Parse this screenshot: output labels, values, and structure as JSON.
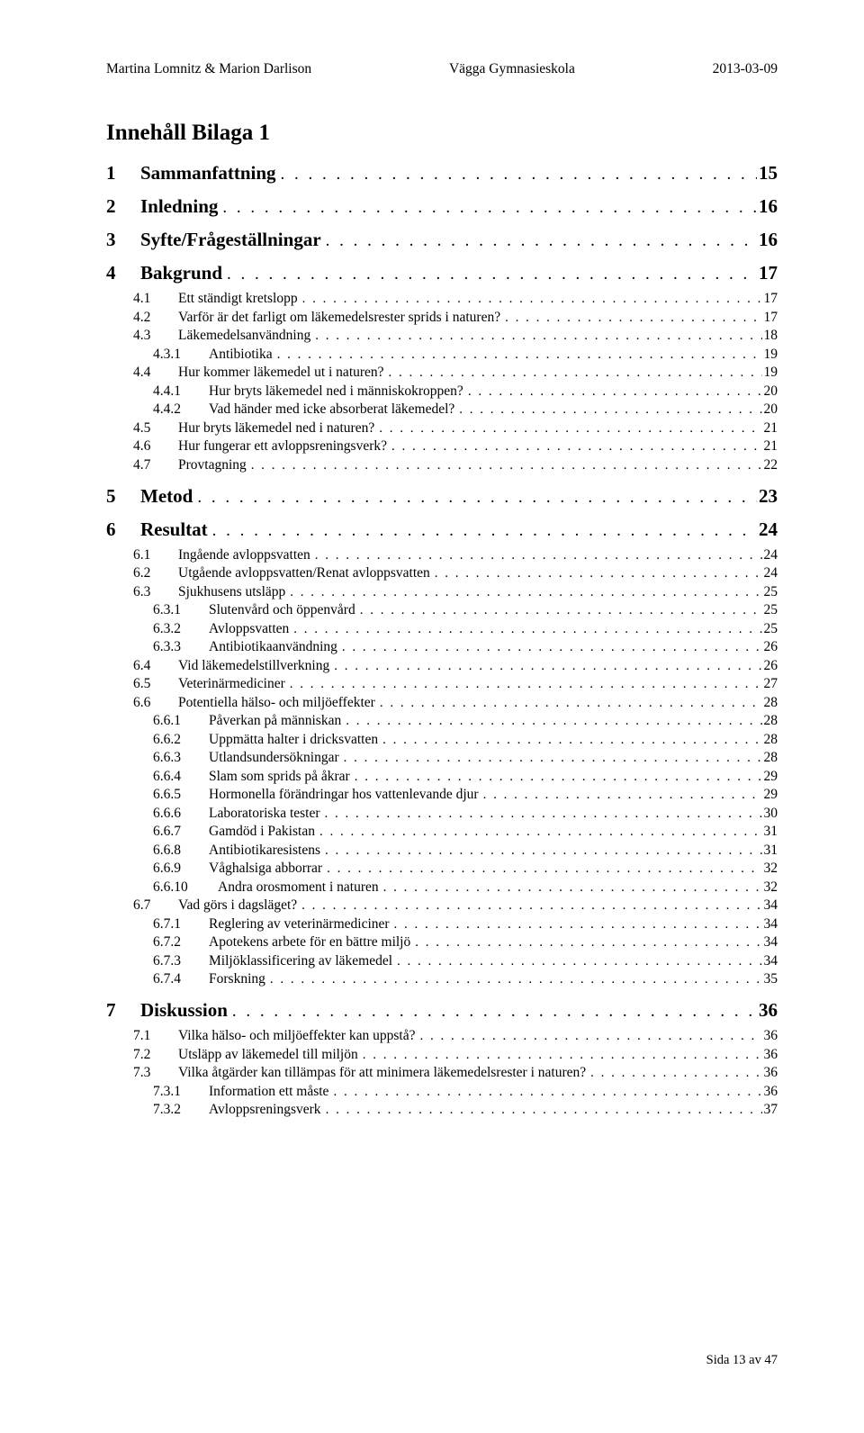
{
  "header": {
    "left": "Martina Lomnitz & Marion Darlison",
    "center": "Vägga Gymnasieskola",
    "right": "2013-03-09"
  },
  "title": "Innehåll Bilaga 1",
  "toc": [
    {
      "lvl": 1,
      "num": "1",
      "title": "Sammanfattning",
      "page": "15"
    },
    {
      "lvl": 1,
      "num": "2",
      "title": "Inledning",
      "page": "16"
    },
    {
      "lvl": 1,
      "num": "3",
      "title": "Syfte/Frågeställningar",
      "page": "16"
    },
    {
      "lvl": 1,
      "num": "4",
      "title": "Bakgrund",
      "page": "17"
    },
    {
      "lvl": 2,
      "num": "4.1",
      "title": "Ett ständigt kretslopp",
      "page": "17"
    },
    {
      "lvl": 2,
      "num": "4.2",
      "title": "Varför är det farligt om läkemedelsrester sprids i naturen?",
      "page": "17"
    },
    {
      "lvl": 2,
      "num": "4.3",
      "title": "Läkemedelsanvändning",
      "page": "18"
    },
    {
      "lvl": 3,
      "num": "4.3.1",
      "title": "Antibiotika",
      "page": "19"
    },
    {
      "lvl": 2,
      "num": "4.4",
      "title": "Hur kommer läkemedel ut i naturen?",
      "page": "19"
    },
    {
      "lvl": 3,
      "num": "4.4.1",
      "title": "Hur bryts läkemedel ned i människokroppen?",
      "page": "20"
    },
    {
      "lvl": 3,
      "num": "4.4.2",
      "title": "Vad händer med icke absorberat läkemedel?",
      "page": "20"
    },
    {
      "lvl": 2,
      "num": "4.5",
      "title": "Hur bryts läkemedel ned i naturen?",
      "page": "21"
    },
    {
      "lvl": 2,
      "num": "4.6",
      "title": "Hur fungerar ett avloppsreningsverk?",
      "page": "21"
    },
    {
      "lvl": 2,
      "num": "4.7",
      "title": "Provtagning",
      "page": "22"
    },
    {
      "lvl": 1,
      "num": "5",
      "title": "Metod",
      "page": "23"
    },
    {
      "lvl": 1,
      "num": "6",
      "title": "Resultat",
      "page": "24"
    },
    {
      "lvl": 2,
      "num": "6.1",
      "title": "Ingående avloppsvatten",
      "page": "24"
    },
    {
      "lvl": 2,
      "num": "6.2",
      "title": "Utgående avloppsvatten/Renat avloppsvatten",
      "page": "24"
    },
    {
      "lvl": 2,
      "num": "6.3",
      "title": "Sjukhusens utsläpp",
      "page": "25"
    },
    {
      "lvl": 3,
      "num": "6.3.1",
      "title": "Slutenvård och öppenvård",
      "page": "25"
    },
    {
      "lvl": 3,
      "num": "6.3.2",
      "title": "Avloppsvatten",
      "page": "25"
    },
    {
      "lvl": 3,
      "num": "6.3.3",
      "title": "Antibiotikaanvändning",
      "page": "26"
    },
    {
      "lvl": 2,
      "num": "6.4",
      "title": "Vid läkemedelstillverkning",
      "page": "26"
    },
    {
      "lvl": 2,
      "num": "6.5",
      "title": "Veterinärmediciner",
      "page": "27"
    },
    {
      "lvl": 2,
      "num": "6.6",
      "title": "Potentiella hälso- och miljöeffekter",
      "page": "28"
    },
    {
      "lvl": 3,
      "num": "6.6.1",
      "title": "Påverkan på människan",
      "page": "28"
    },
    {
      "lvl": 3,
      "num": "6.6.2",
      "title": "Uppmätta halter i dricksvatten",
      "page": "28"
    },
    {
      "lvl": 3,
      "num": "6.6.3",
      "title": "Utlandsundersökningar",
      "page": "28"
    },
    {
      "lvl": 3,
      "num": "6.6.4",
      "title": "Slam som sprids på åkrar",
      "page": "29"
    },
    {
      "lvl": 3,
      "num": "6.6.5",
      "title": "Hormonella förändringar hos vattenlevande djur",
      "page": "29"
    },
    {
      "lvl": 3,
      "num": "6.6.6",
      "title": "Laboratoriska tester",
      "page": "30"
    },
    {
      "lvl": 3,
      "num": "6.6.7",
      "title": "Gamdöd i Pakistan",
      "page": "31"
    },
    {
      "lvl": 3,
      "num": "6.6.8",
      "title": "Antibiotikaresistens",
      "page": "31"
    },
    {
      "lvl": 3,
      "num": "6.6.9",
      "title": "Våghalsiga abborrar",
      "page": "32"
    },
    {
      "lvl": 3,
      "num": "6.6.10",
      "title": "Andra orosmoment i naturen",
      "page": "32",
      "wide": true
    },
    {
      "lvl": 2,
      "num": "6.7",
      "title": "Vad görs i dagsläget?",
      "page": "34"
    },
    {
      "lvl": 3,
      "num": "6.7.1",
      "title": "Reglering av veterinärmediciner",
      "page": "34"
    },
    {
      "lvl": 3,
      "num": "6.7.2",
      "title": "Apotekens arbete för en bättre miljö",
      "page": "34"
    },
    {
      "lvl": 3,
      "num": "6.7.3",
      "title": "Miljöklassificering av läkemedel",
      "page": "34"
    },
    {
      "lvl": 3,
      "num": "6.7.4",
      "title": "Forskning",
      "page": "35"
    },
    {
      "lvl": 1,
      "num": "7",
      "title": "Diskussion",
      "page": "36"
    },
    {
      "lvl": 2,
      "num": "7.1",
      "title": "Vilka hälso- och miljöeffekter kan uppstå?",
      "page": "36"
    },
    {
      "lvl": 2,
      "num": "7.2",
      "title": "Utsläpp av läkemedel till miljön",
      "page": "36"
    },
    {
      "lvl": 2,
      "num": "7.3",
      "title": "Vilka åtgärder kan tillämpas för att minimera läkemedelsrester i naturen?",
      "page": "36"
    },
    {
      "lvl": 3,
      "num": "7.3.1",
      "title": "Information ett måste",
      "page": "36"
    },
    {
      "lvl": 3,
      "num": "7.3.2",
      "title": "Avloppsreningsverk",
      "page": "37"
    }
  ],
  "footer": "Sida 13 av 47",
  "leader_dots": ". . . . . . . . . . . . . . . . . . . . . . . . . . . . . . . . . . . . . . . . . . . . . . . . . . . . . . . . . . . . . . . . . . . . . . . . . . . . . . . . . . . . . . . . . . . . . . . . . . . . . . . . . . . . . . . . . . . . . . . . . . . . . . . . . . . . . . . . . . . . . . . . . . . . . . . . . . . . . . . . . . . . ."
}
